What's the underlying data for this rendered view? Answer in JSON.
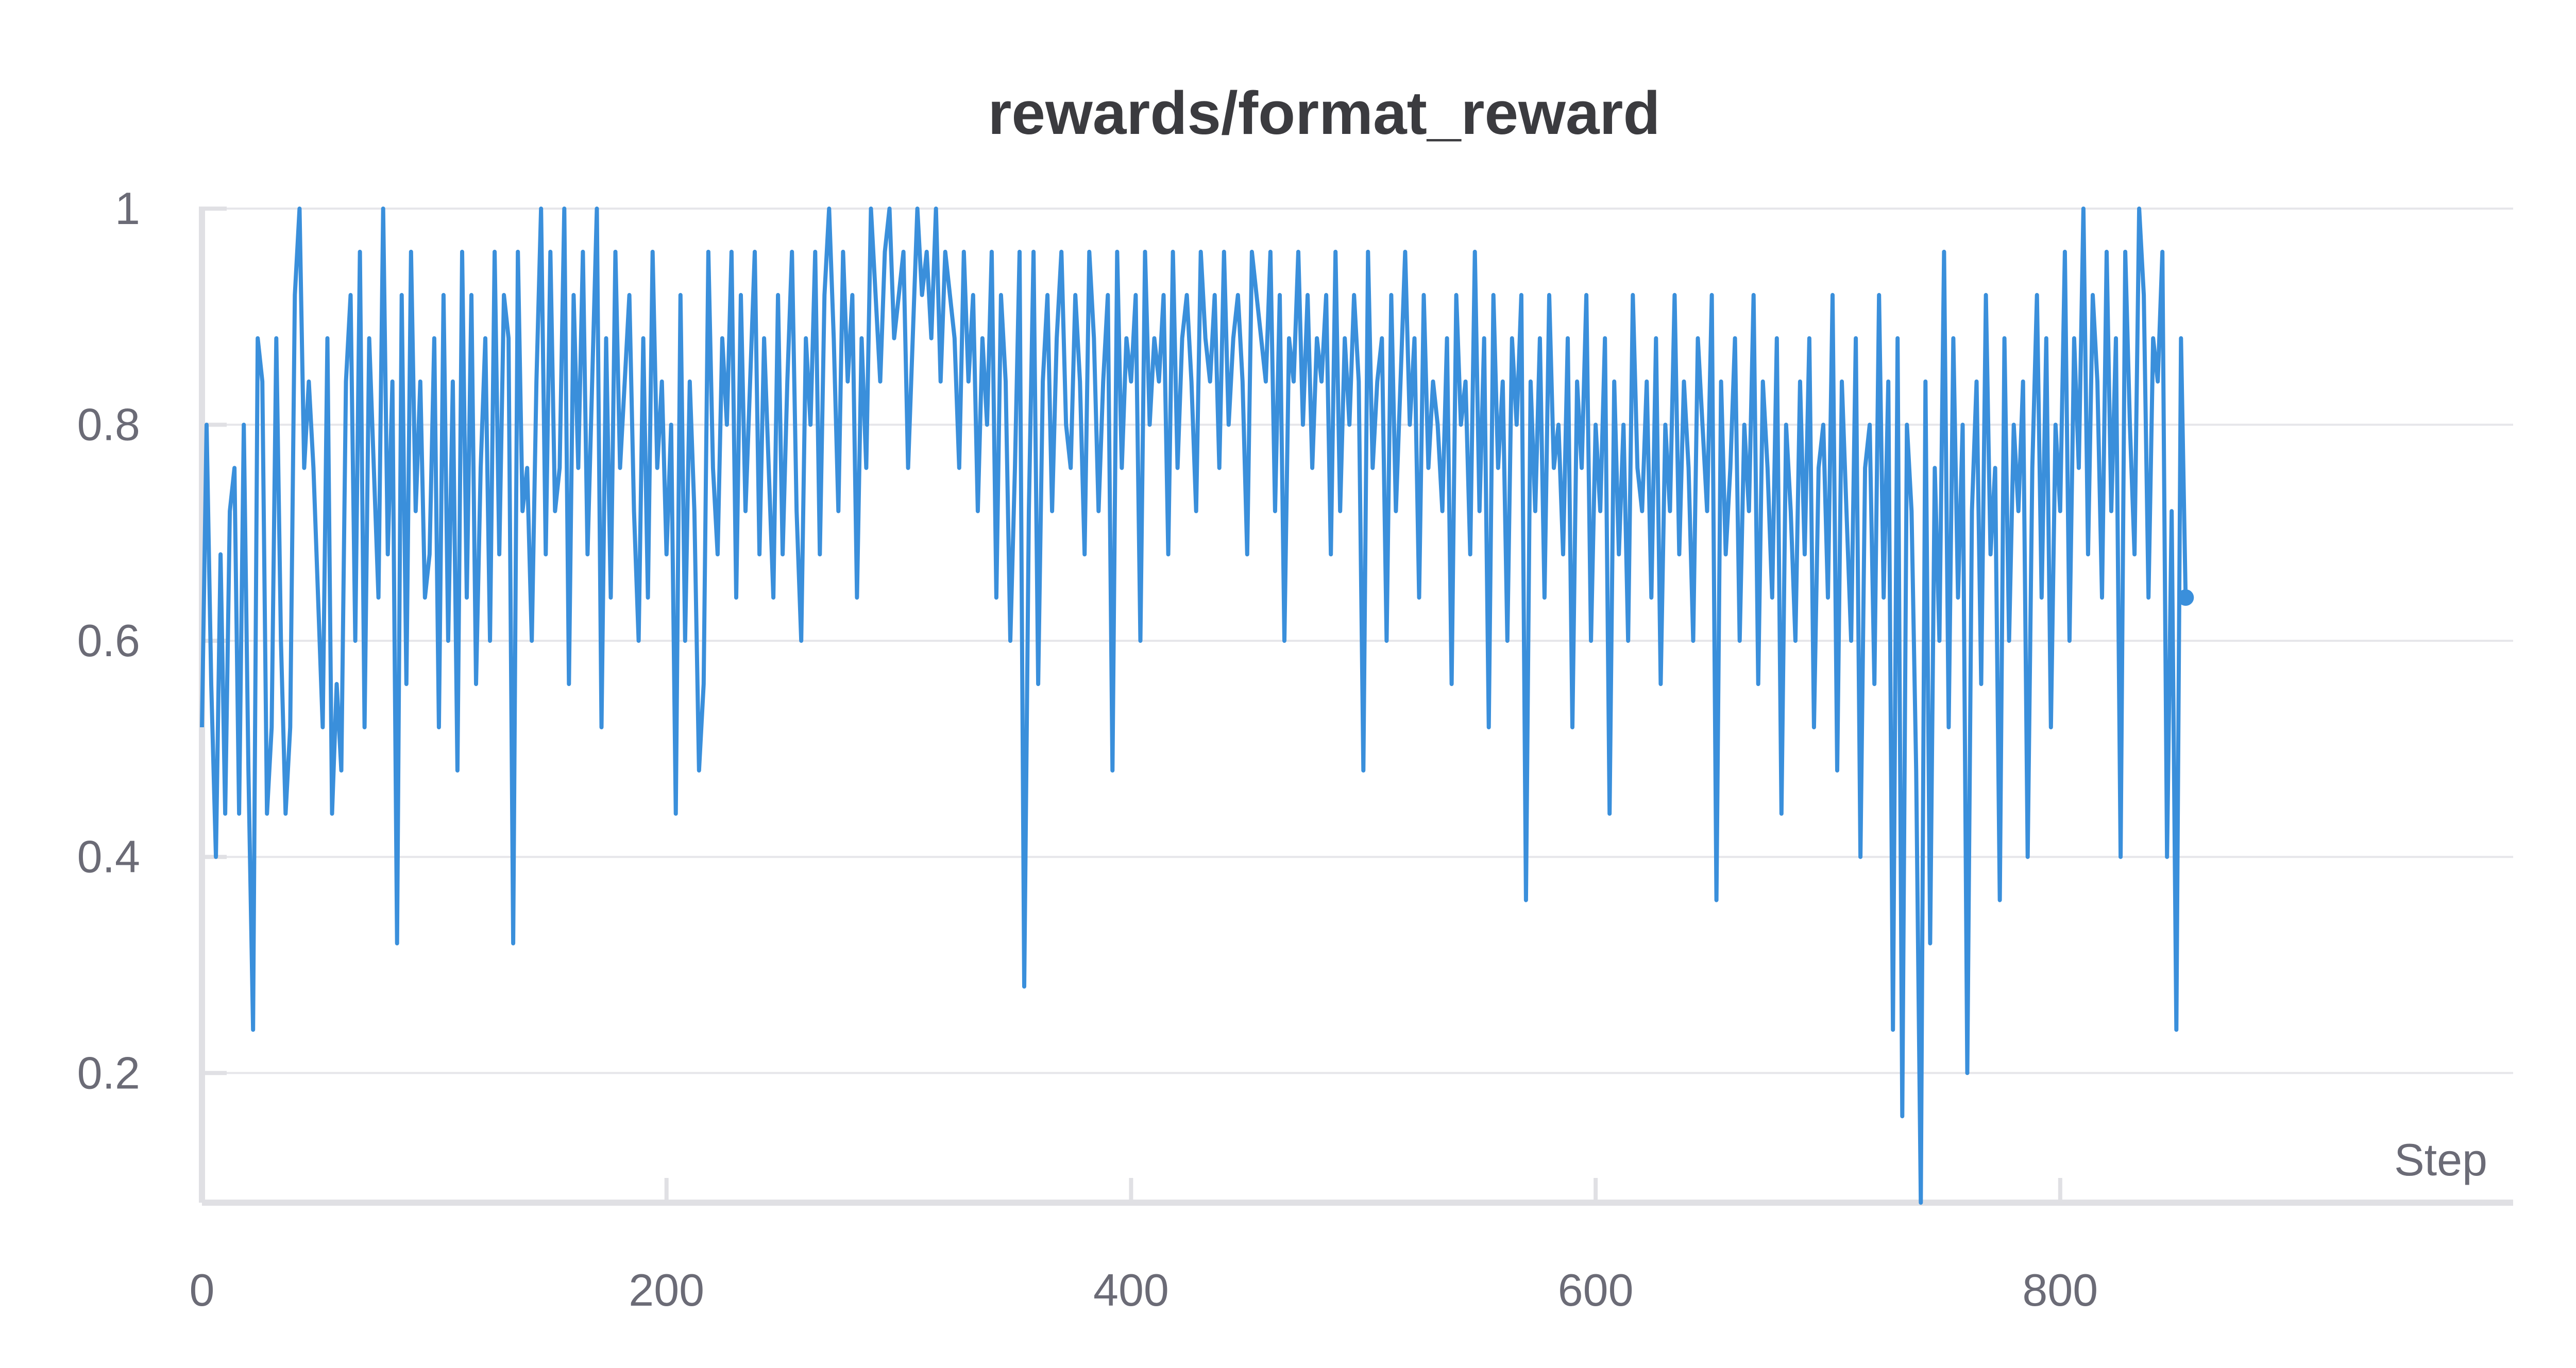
{
  "chart_data": {
    "type": "line",
    "title": "rewards/format_reward",
    "xlabel": "Step",
    "ylabel": "",
    "xlim": [
      0,
      995
    ],
    "ylim": [
      0.08,
      1.0
    ],
    "x_ticks": [
      0,
      200,
      400,
      600,
      800
    ],
    "x_tick_labels": [
      "0",
      "200",
      "400",
      "600",
      "800"
    ],
    "y_ticks": [
      0.2,
      0.4,
      0.6,
      0.8,
      1.0
    ],
    "y_tick_labels": [
      "0.2",
      "0.4",
      "0.6",
      "0.8",
      "1"
    ],
    "grid": true,
    "legend": "none",
    "colors": {
      "series": "#3a8fdb",
      "grid": "#e6e6ea",
      "axis": "#e0e0e4",
      "text": "#6b6b76",
      "title": "#3b3b3f"
    },
    "series": [
      {
        "x_start": 0,
        "x_step": 2,
        "values": [
          0.52,
          0.8,
          0.56,
          0.4,
          0.68,
          0.44,
          0.72,
          0.76,
          0.44,
          0.8,
          0.48,
          0.24,
          0.88,
          0.84,
          0.44,
          0.52,
          0.88,
          0.6,
          0.44,
          0.52,
          0.92,
          1.0,
          0.76,
          0.84,
          0.76,
          0.64,
          0.52,
          0.88,
          0.44,
          0.56,
          0.48,
          0.84,
          0.92,
          0.6,
          0.96,
          0.52,
          0.88,
          0.76,
          0.64,
          1.0,
          0.68,
          0.84,
          0.32,
          0.92,
          0.56,
          0.96,
          0.72,
          0.84,
          0.64,
          0.68,
          0.88,
          0.52,
          0.92,
          0.6,
          0.84,
          0.48,
          0.96,
          0.64,
          0.92,
          0.56,
          0.76,
          0.88,
          0.6,
          0.96,
          0.68,
          0.92,
          0.88,
          0.32,
          0.96,
          0.72,
          0.76,
          0.6,
          0.84,
          1.0,
          0.68,
          0.96,
          0.72,
          0.76,
          1.0,
          0.56,
          0.92,
          0.76,
          0.96,
          0.68,
          0.84,
          1.0,
          0.52,
          0.88,
          0.64,
          0.96,
          0.76,
          0.84,
          0.92,
          0.72,
          0.6,
          0.88,
          0.64,
          0.96,
          0.76,
          0.84,
          0.68,
          0.8,
          0.44,
          0.92,
          0.6,
          0.84,
          0.72,
          0.48,
          0.56,
          0.96,
          0.76,
          0.68,
          0.88,
          0.8,
          0.96,
          0.64,
          0.92,
          0.72,
          0.84,
          0.96,
          0.68,
          0.88,
          0.76,
          0.64,
          0.92,
          0.68,
          0.84,
          0.96,
          0.72,
          0.6,
          0.88,
          0.8,
          0.96,
          0.68,
          0.92,
          1.0,
          0.88,
          0.72,
          0.96,
          0.84,
          0.92,
          0.64,
          0.88,
          0.76,
          1.0,
          0.92,
          0.84,
          0.96,
          1.0,
          0.88,
          0.92,
          0.96,
          0.76,
          0.88,
          1.0,
          0.92,
          0.96,
          0.88,
          1.0,
          0.84,
          0.96,
          0.92,
          0.88,
          0.76,
          0.96,
          0.84,
          0.92,
          0.72,
          0.88,
          0.8,
          0.96,
          0.64,
          0.92,
          0.84,
          0.6,
          0.76,
          0.96,
          0.28,
          0.72,
          0.96,
          0.56,
          0.84,
          0.92,
          0.72,
          0.88,
          0.96,
          0.8,
          0.76,
          0.92,
          0.84,
          0.68,
          0.96,
          0.88,
          0.72,
          0.84,
          0.92,
          0.48,
          0.96,
          0.76,
          0.88,
          0.84,
          0.92,
          0.6,
          0.96,
          0.8,
          0.88,
          0.84,
          0.92,
          0.68,
          0.96,
          0.76,
          0.88,
          0.92,
          0.84,
          0.72,
          0.96,
          0.88,
          0.84,
          0.92,
          0.76,
          0.96,
          0.8,
          0.88,
          0.92,
          0.84,
          0.68,
          0.96,
          0.92,
          0.88,
          0.84,
          0.96,
          0.72,
          0.92,
          0.6,
          0.88,
          0.84,
          0.96,
          0.8,
          0.92,
          0.76,
          0.88,
          0.84,
          0.92,
          0.68,
          0.96,
          0.72,
          0.88,
          0.8,
          0.92,
          0.84,
          0.48,
          0.96,
          0.76,
          0.84,
          0.88,
          0.6,
          0.92,
          0.72,
          0.84,
          0.96,
          0.8,
          0.88,
          0.64,
          0.92,
          0.76,
          0.84,
          0.8,
          0.72,
          0.88,
          0.56,
          0.92,
          0.8,
          0.84,
          0.68,
          0.96,
          0.72,
          0.88,
          0.52,
          0.92,
          0.76,
          0.84,
          0.6,
          0.88,
          0.8,
          0.92,
          0.36,
          0.84,
          0.72,
          0.88,
          0.64,
          0.92,
          0.76,
          0.8,
          0.68,
          0.88,
          0.52,
          0.84,
          0.76,
          0.92,
          0.6,
          0.8,
          0.72,
          0.88,
          0.44,
          0.84,
          0.68,
          0.8,
          0.6,
          0.92,
          0.76,
          0.72,
          0.84,
          0.64,
          0.88,
          0.56,
          0.8,
          0.72,
          0.92,
          0.68,
          0.84,
          0.76,
          0.6,
          0.88,
          0.8,
          0.72,
          0.92,
          0.36,
          0.84,
          0.68,
          0.76,
          0.88,
          0.6,
          0.8,
          0.72,
          0.92,
          0.56,
          0.84,
          0.76,
          0.64,
          0.88,
          0.44,
          0.8,
          0.72,
          0.6,
          0.84,
          0.68,
          0.88,
          0.52,
          0.76,
          0.8,
          0.64,
          0.92,
          0.48,
          0.84,
          0.72,
          0.6,
          0.88,
          0.4,
          0.76,
          0.8,
          0.56,
          0.92,
          0.64,
          0.84,
          0.24,
          0.88,
          0.16,
          0.8,
          0.72,
          0.48,
          0.08,
          0.84,
          0.32,
          0.76,
          0.6,
          0.96,
          0.52,
          0.88,
          0.64,
          0.8,
          0.2,
          0.72,
          0.84,
          0.56,
          0.92,
          0.68,
          0.76,
          0.36,
          0.88,
          0.6,
          0.8,
          0.72,
          0.84,
          0.4,
          0.76,
          0.92,
          0.64,
          0.88,
          0.52,
          0.8,
          0.72,
          0.96,
          0.6,
          0.88,
          0.76,
          1.0,
          0.68,
          0.92,
          0.84,
          0.64,
          0.96,
          0.72,
          0.88,
          0.4,
          0.96,
          0.8,
          0.68,
          1.0,
          0.92,
          0.64,
          0.88,
          0.84,
          0.96,
          0.4,
          0.72,
          0.24,
          0.88,
          0.64
        ]
      }
    ]
  }
}
